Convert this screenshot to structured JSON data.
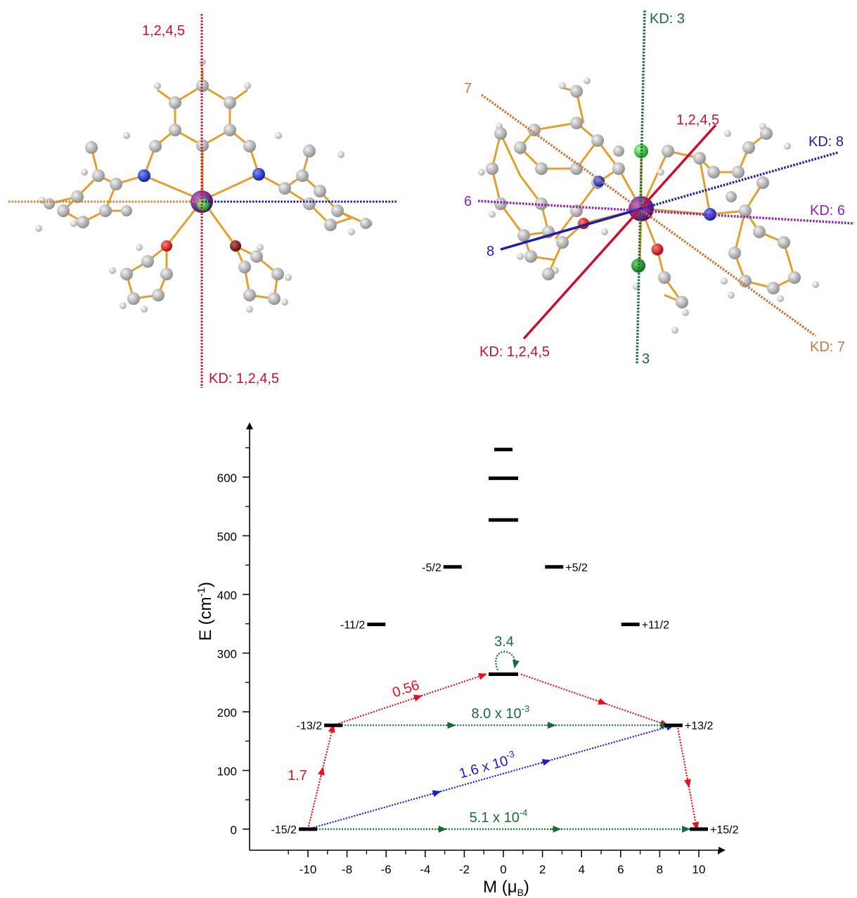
{
  "left_structure": {
    "top_label": "1,2,4,5",
    "bottom_label": "KD: 1,2,4,5",
    "colors": {
      "red": "#c8102e",
      "orange": "#d2823c",
      "blue": "#1f1fa5",
      "purple": "#7b1fa2"
    }
  },
  "right_structure": {
    "labels": {
      "kd3_top": "KD: 3",
      "kd3_bottom": "3",
      "kd7_start": "7",
      "kd7_end": "KD: 7",
      "kd1245_top": "1,2,4,5",
      "kd1245_bottom": "KD: 1,2,4,5",
      "kd8_end": "KD: 8",
      "kd8_start": "8",
      "kd6_start": "6",
      "kd6_end": "KD: 6"
    },
    "colors": {
      "green": "#1b6b3a",
      "orange": "#c8783c",
      "red": "#c8102e",
      "blue": "#1f1fa5",
      "purple": "#8e24aa"
    }
  },
  "chart_data": {
    "type": "energy-level-diagram",
    "xlabel": "M (μB)",
    "ylabel": "E (cm-1)",
    "xlim": [
      -12,
      12
    ],
    "ylim": [
      -40,
      690
    ],
    "x_ticks": [
      -10,
      -8,
      -6,
      -4,
      -2,
      0,
      2,
      4,
      6,
      8,
      10
    ],
    "y_ticks": [
      0,
      100,
      200,
      300,
      400,
      500,
      600
    ],
    "levels": [
      {
        "m": -10,
        "e": 0,
        "label": "-15/2",
        "side": "left"
      },
      {
        "m": 10,
        "e": 0,
        "label": "+15/2",
        "side": "right"
      },
      {
        "m": -8.7,
        "e": 177,
        "label": "-13/2",
        "side": "left"
      },
      {
        "m": 8.7,
        "e": 177,
        "label": "+13/2",
        "side": "right"
      },
      {
        "m": -6.5,
        "e": 349,
        "label": "-11/2",
        "side": "left"
      },
      {
        "m": 6.5,
        "e": 349,
        "label": "+11/2",
        "side": "right"
      },
      {
        "m": -2.6,
        "e": 447,
        "label": "-5/2",
        "side": "left"
      },
      {
        "m": 2.6,
        "e": 447,
        "label": "+5/2",
        "side": "right"
      },
      {
        "m": 0,
        "e": 264,
        "label": "",
        "side": "none",
        "wide": true
      },
      {
        "m": 0,
        "e": 527,
        "label": "",
        "side": "none",
        "wide": true
      },
      {
        "m": 0,
        "e": 598,
        "label": "",
        "side": "none",
        "wide": true
      },
      {
        "m": 0,
        "e": 647,
        "label": "",
        "side": "none",
        "wide": false
      }
    ],
    "transitions": [
      {
        "from": [
          -10,
          0
        ],
        "to": [
          -8.7,
          177
        ],
        "color": "red",
        "value": "1.7"
      },
      {
        "from": [
          -8.7,
          177
        ],
        "to": [
          -0.9,
          264
        ],
        "color": "red",
        "value": "0.56"
      },
      {
        "from": [
          0.9,
          264
        ],
        "to": [
          8.4,
          177
        ],
        "color": "red",
        "value": ""
      },
      {
        "from": [
          8.9,
          177
        ],
        "to": [
          9.9,
          0
        ],
        "color": "red",
        "value": ""
      },
      {
        "from": [
          -8.7,
          177
        ],
        "to": [
          8.4,
          177
        ],
        "color": "green",
        "value": "8.0 x 10-3"
      },
      {
        "from": [
          -10,
          0
        ],
        "to": [
          8.7,
          177
        ],
        "color": "blue",
        "value": "1.6 x 10-3"
      },
      {
        "from": [
          -10,
          0
        ],
        "to": [
          9.5,
          0
        ],
        "color": "green",
        "value": "5.1 x 10-4"
      },
      {
        "loop": true,
        "at": [
          0,
          264
        ],
        "color": "green",
        "value": "3.4"
      }
    ],
    "colors": {
      "red": "#e8101e",
      "green": "#1b6b3a",
      "blue": "#1a1ad8",
      "black": "#000000"
    }
  }
}
